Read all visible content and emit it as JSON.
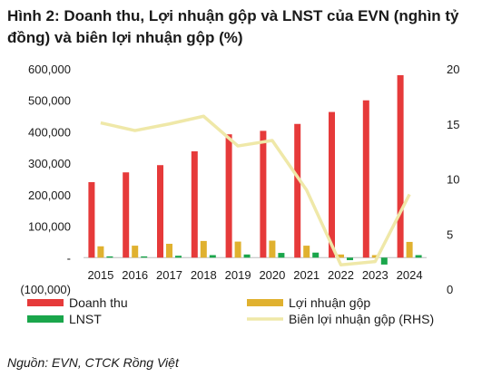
{
  "title": "Hình 2: Doanh thu, Lợi nhuận gộp và LNST của EVN (nghìn tỷ đồng) và biên lợi nhuận gộp (%)",
  "source": "Nguồn: EVN,  CTCK Rồng Việt",
  "chart_data": {
    "type": "bar",
    "categories": [
      "2015",
      "2016",
      "2017",
      "2018",
      "2019",
      "2020",
      "2021",
      "2022",
      "2023",
      "2024"
    ],
    "series": [
      {
        "name": "Doanh thu",
        "type": "bar",
        "color": "#e63a3a",
        "values": [
          240000,
          271000,
          294000,
          338000,
          392000,
          403000,
          425000,
          463000,
          500000,
          580000
        ]
      },
      {
        "name": "Lợi nhuận gộp",
        "type": "bar",
        "color": "#e0b12f",
        "values": [
          36000,
          38000,
          44000,
          53000,
          51000,
          54000,
          38000,
          10000,
          8000,
          50000
        ]
      },
      {
        "name": "LNST",
        "type": "bar",
        "color": "#1aa64b",
        "values": [
          4000,
          4000,
          6000,
          8000,
          10000,
          15000,
          16000,
          -8000,
          -22000,
          8000
        ]
      },
      {
        "name": "Biên lợi nhuận gộp (RHS)",
        "type": "line",
        "axis": "right",
        "color": "#efe8a8",
        "values": [
          15.1,
          14.4,
          15.0,
          15.7,
          13.0,
          13.5,
          9.0,
          2.2,
          2.5,
          8.6
        ]
      }
    ],
    "y_left": {
      "ylim": [
        -100000,
        600000
      ],
      "ticks": [
        -100000,
        0,
        100000,
        200000,
        300000,
        400000,
        500000,
        600000
      ],
      "tick_labels": [
        "(100,000)",
        "-",
        "100,000",
        "200,000",
        "300,000",
        "400,000",
        "500,000",
        "600,000"
      ]
    },
    "y_right": {
      "ylim": [
        0,
        20
      ],
      "ticks": [
        0,
        5,
        10,
        15,
        20
      ],
      "tick_labels": [
        "0",
        "5",
        "10",
        "15",
        "20"
      ]
    },
    "grid": false,
    "legend_position": "bottom"
  }
}
